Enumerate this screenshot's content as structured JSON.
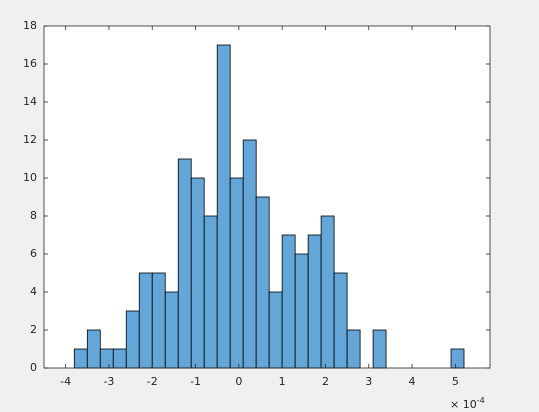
{
  "chart_data": {
    "type": "histogram",
    "bins": [
      -3.8,
      -3.5,
      -3.2,
      -2.9,
      -2.6,
      -2.3,
      -2.0,
      -1.7,
      -1.4,
      -1.1,
      -0.8,
      -0.5,
      -0.2,
      0.1,
      0.4,
      0.7,
      1.0,
      1.3,
      1.6,
      1.9,
      2.2,
      2.5,
      2.8,
      3.1,
      3.4,
      3.7,
      4.0,
      4.3,
      4.6,
      4.9,
      5.2
    ],
    "values": [
      1,
      2,
      1,
      1,
      3,
      5,
      5,
      4,
      11,
      10,
      8,
      17,
      10,
      12,
      9,
      4,
      7,
      6,
      7,
      8,
      5,
      2,
      0,
      2,
      0,
      0,
      0,
      0,
      0,
      1
    ],
    "color": "#64a6d8",
    "xlim": [
      -4.5,
      5.8
    ],
    "xticks": [
      -4,
      -3,
      -2,
      -1,
      0,
      1,
      2,
      3,
      4,
      5
    ],
    "x_exponent": {
      "base": "× 10",
      "power": "-4"
    },
    "ylim": [
      0,
      18
    ],
    "yticks": [
      0,
      2,
      4,
      6,
      8,
      10,
      12,
      14,
      16,
      18
    ]
  }
}
